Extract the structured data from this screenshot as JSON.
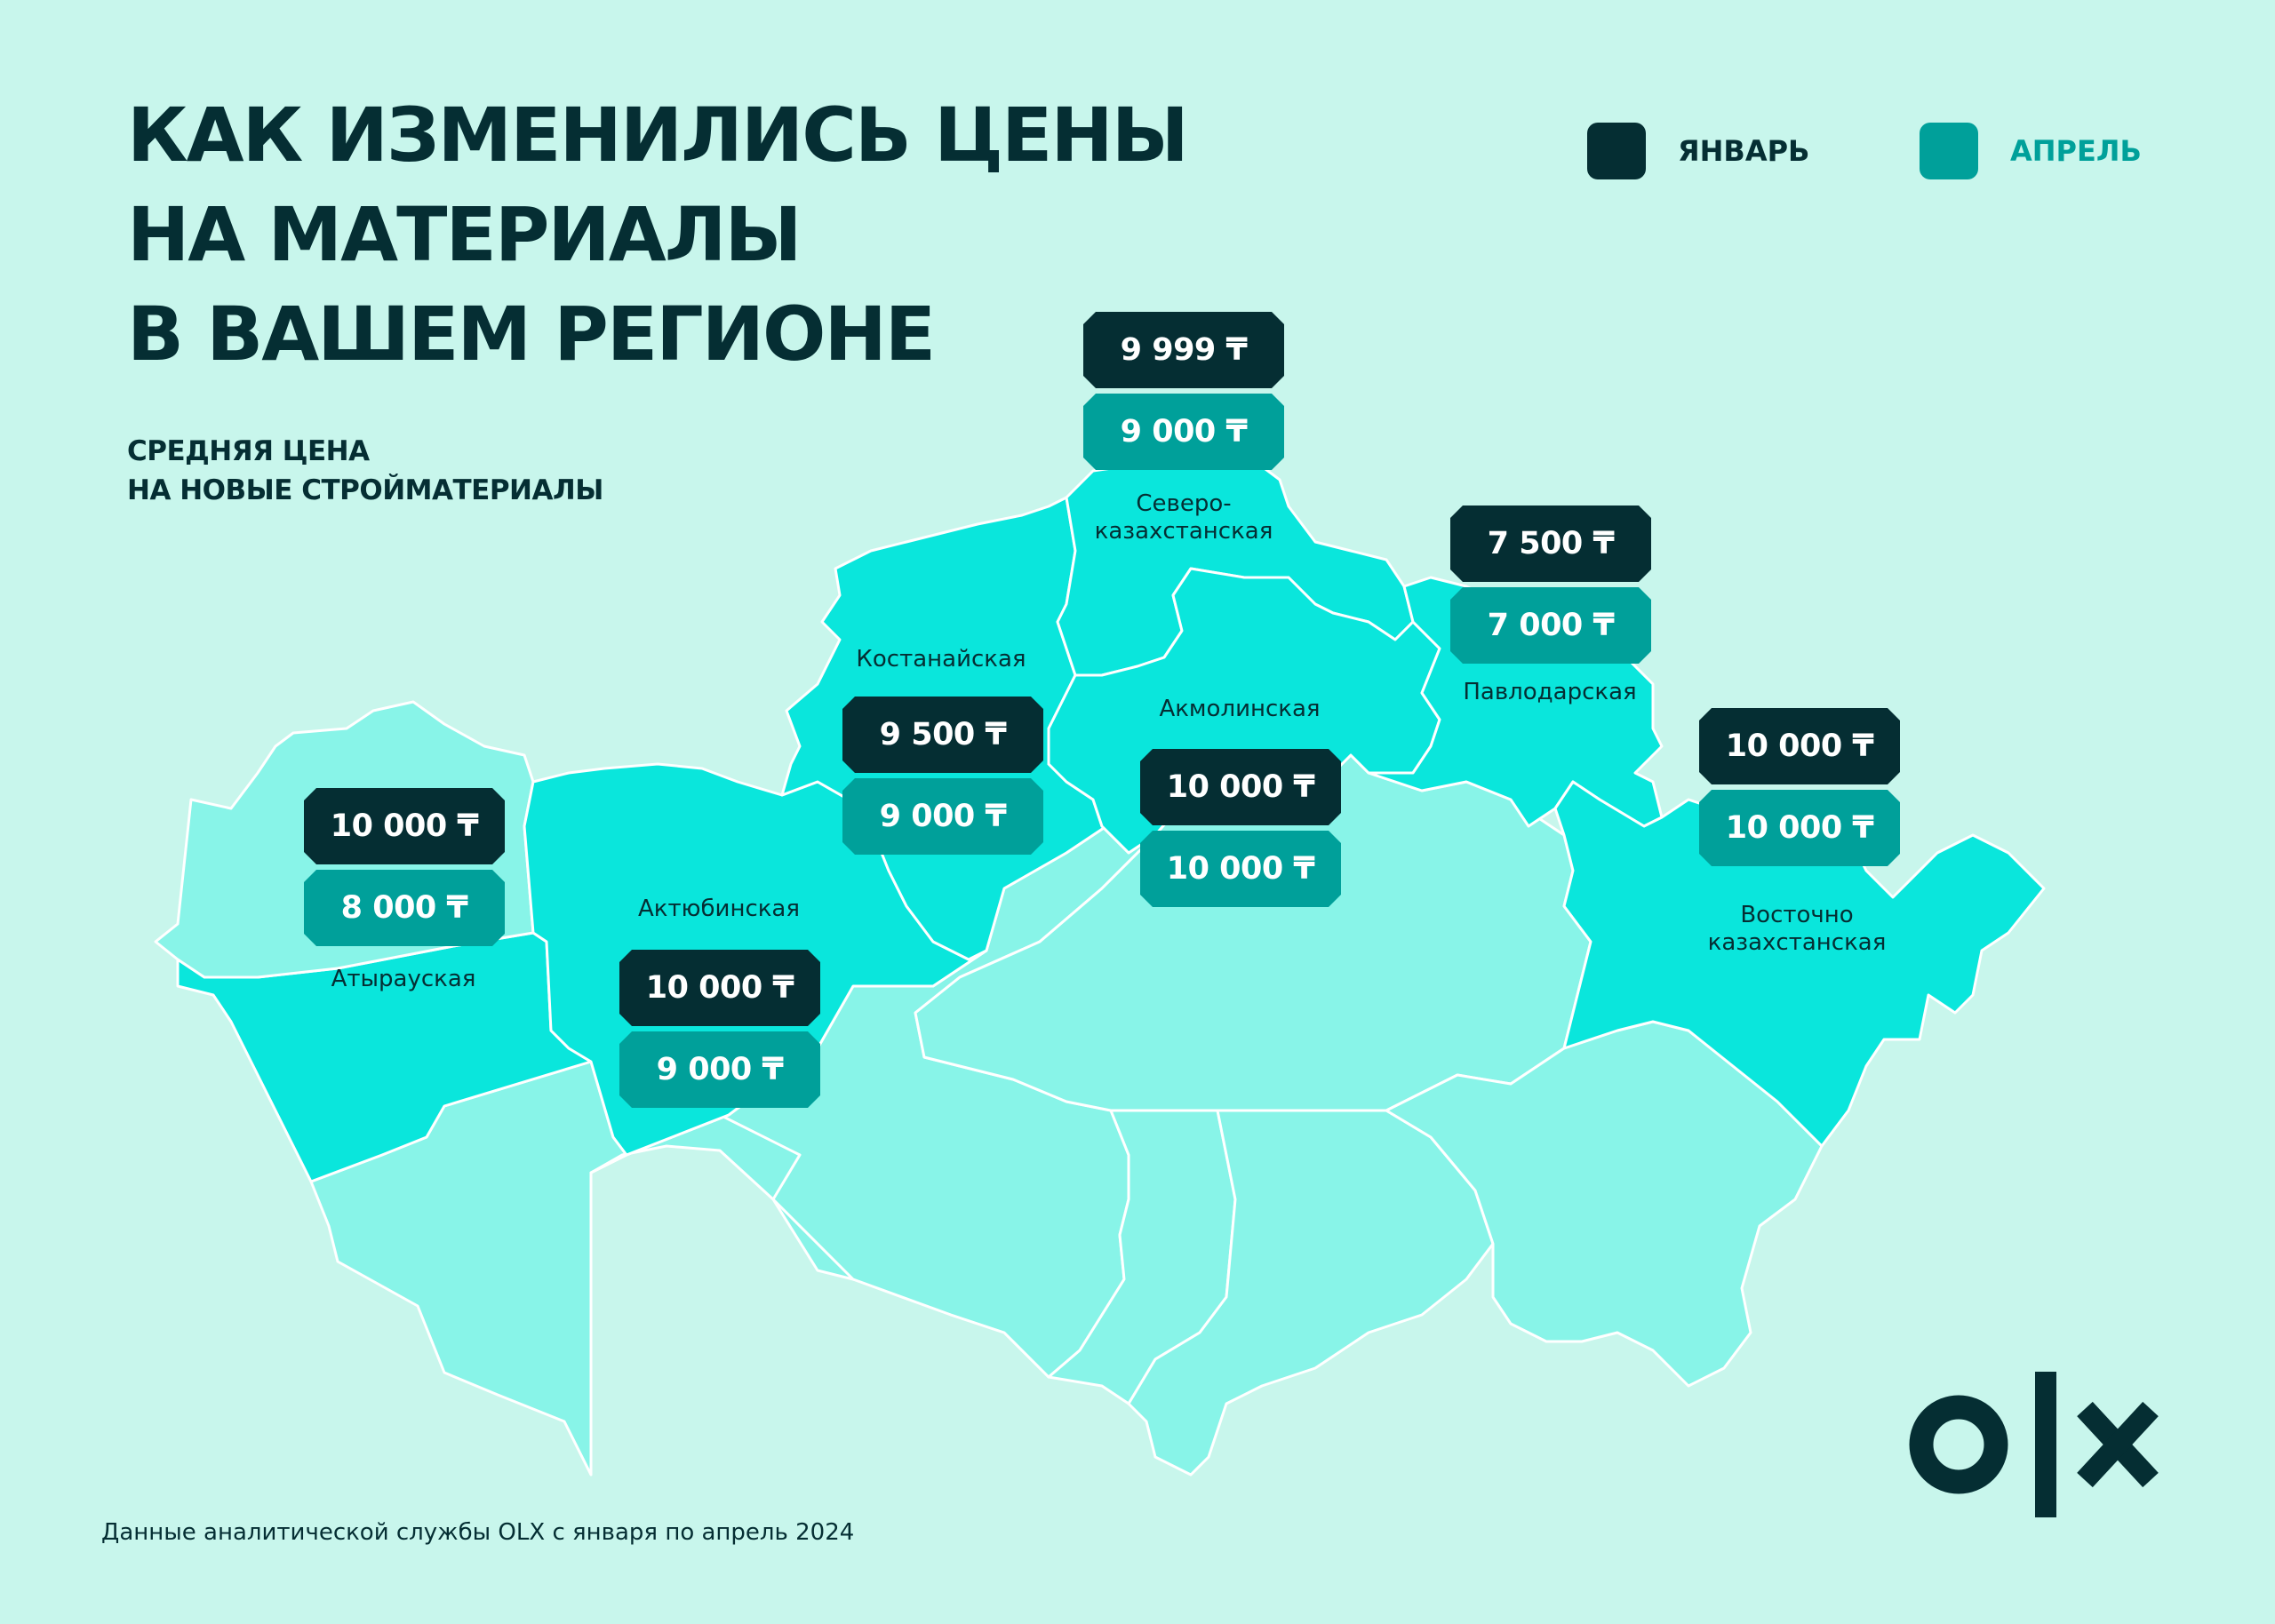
{
  "title": {
    "line1": "КАК ИЗМЕНИЛИСЬ ЦЕНЫ",
    "line2": "НА МАТЕРИАЛЫ",
    "line3": "В ВАШЕМ РЕГИОНЕ"
  },
  "subtitle": {
    "line1": "СРЕДНЯЯ ЦЕНА",
    "line2": "НА НОВЫЕ СТРОЙМАТЕРИАЛЫ"
  },
  "legend": {
    "january": "ЯНВАРЬ",
    "april": "АПРЕЛЬ"
  },
  "colors": {
    "january": "#052e33",
    "april": "#00a09a",
    "highlighted_region": "#0ae6dc",
    "other_region": "#88f4e8",
    "background": "#c8f6ec"
  },
  "regions": {
    "north_kz": {
      "name_line1": "Северо-",
      "name_line2": "казахстанская",
      "january": "9 999 ₸",
      "april": "9 000 ₸"
    },
    "pavlodar": {
      "name": "Павлодарская",
      "january": "7 500 ₸",
      "april": "7 000 ₸"
    },
    "kostanay": {
      "name": "Костанайская",
      "january": "9 500 ₸",
      "april": "9 000 ₸"
    },
    "akmola": {
      "name": "Акмолинская",
      "january": "10 000 ₸",
      "april": "10 000 ₸"
    },
    "east_kz": {
      "name_line1": "Восточно",
      "name_line2": "казахстанская",
      "january": "10 000 ₸",
      "april": "10 000 ₸"
    },
    "atyrau": {
      "name": "Атырауская",
      "january": "10 000 ₸",
      "april": "8 000 ₸"
    },
    "aktobe": {
      "name": "Актюбинская",
      "january": "10 000 ₸",
      "april": "9 000 ₸"
    }
  },
  "footer": "Данные аналитической службы OLX с января по апрель 2024",
  "logo": "olx-logo"
}
